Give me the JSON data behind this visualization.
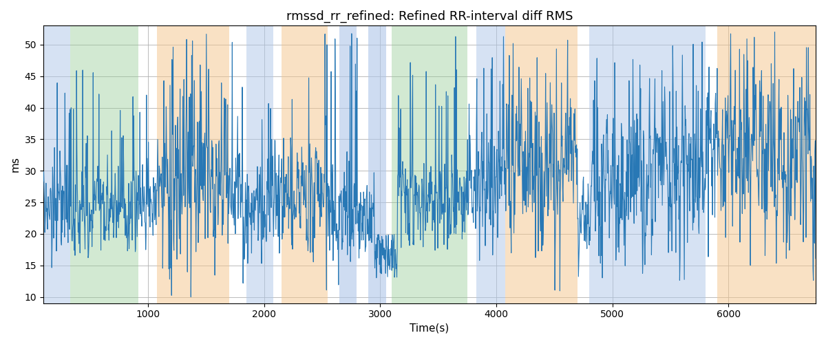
{
  "title": "rmssd_rr_refined: Refined RR-interval diff RMS",
  "xlabel": "Time(s)",
  "ylabel": "ms",
  "ylim": [
    9,
    53
  ],
  "xlim": [
    100,
    6750
  ],
  "line_color": "#2878b5",
  "line_width": 0.8,
  "background_color": "#ffffff",
  "grid_color": "#b0b0b0",
  "bands": [
    {
      "xmin": 100,
      "xmax": 330,
      "color": "#aec6e8",
      "alpha": 0.5
    },
    {
      "xmin": 330,
      "xmax": 920,
      "color": "#90c990",
      "alpha": 0.4
    },
    {
      "xmin": 1080,
      "xmax": 1700,
      "color": "#f5c48a",
      "alpha": 0.5
    },
    {
      "xmin": 1850,
      "xmax": 2080,
      "color": "#aec6e8",
      "alpha": 0.5
    },
    {
      "xmin": 2150,
      "xmax": 2550,
      "color": "#f5c48a",
      "alpha": 0.5
    },
    {
      "xmin": 2650,
      "xmax": 2800,
      "color": "#aec6e8",
      "alpha": 0.6
    },
    {
      "xmin": 2900,
      "xmax": 3050,
      "color": "#aec6e8",
      "alpha": 0.6
    },
    {
      "xmin": 3100,
      "xmax": 3750,
      "color": "#90c990",
      "alpha": 0.4
    },
    {
      "xmin": 3830,
      "xmax": 4080,
      "color": "#aec6e8",
      "alpha": 0.5
    },
    {
      "xmin": 4080,
      "xmax": 4700,
      "color": "#f5c48a",
      "alpha": 0.5
    },
    {
      "xmin": 4800,
      "xmax": 5800,
      "color": "#aec6e8",
      "alpha": 0.5
    },
    {
      "xmin": 5900,
      "xmax": 6750,
      "color": "#f5c48a",
      "alpha": 0.5
    }
  ],
  "seed": 137,
  "n_points": 2000,
  "base_mean": 25,
  "base_std": 4.5
}
